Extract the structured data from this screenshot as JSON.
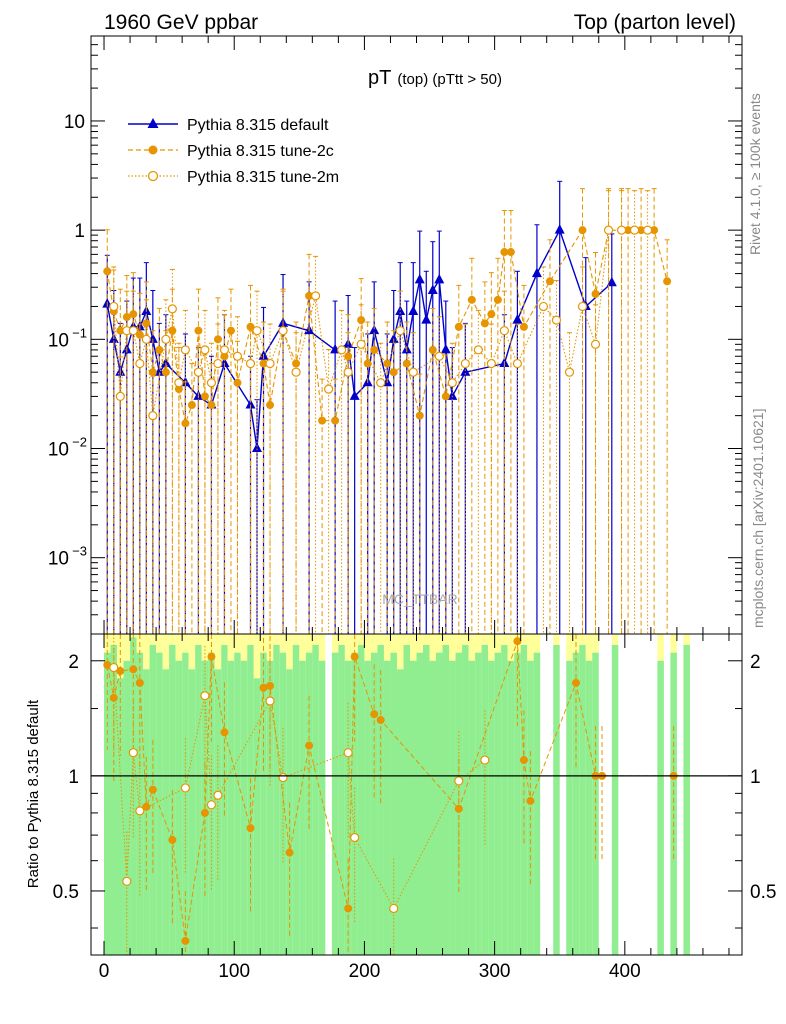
{
  "header": {
    "left": "1960 GeV ppbar",
    "right": "Top (parton level)"
  },
  "side_labels": {
    "rivet": "Rivet 4.1.0, ≥ 100k events",
    "mcplots": "mcplots.cern.ch [arXiv:2401.10621]"
  },
  "watermark": "MC_TTBAR",
  "colors": {
    "default": "#0000cc",
    "tune": "#e69500",
    "band_green": "#90ee90",
    "band_yellow": "#ffff99"
  },
  "chart_data": [
    {
      "panel": "main",
      "type": "line",
      "title_main": "pT",
      "title_sub": "(top) (pTtt > 50)",
      "y_scale": "log",
      "xlim": [
        -10,
        490
      ],
      "ylim": [
        0.0002,
        60
      ],
      "y_ticks": [
        {
          "value": 10,
          "label": "10"
        },
        {
          "value": 1,
          "label": "1"
        },
        {
          "value": 0.1,
          "label": "10",
          "exp": "-1"
        },
        {
          "value": 0.01,
          "label": "10",
          "exp": "-2"
        },
        {
          "value": 0.001,
          "label": "10",
          "exp": "-3"
        }
      ],
      "legend_position": "top-left",
      "series": [
        {
          "name": "Pythia 8.315 default",
          "style": "solid-triangle",
          "x": [
            2.5,
            7.5,
            12.5,
            17.5,
            22.5,
            27.5,
            32.5,
            37.5,
            42.5,
            47.5,
            62.5,
            72.5,
            82.5,
            92.5,
            112.5,
            117.5,
            122.5,
            137.5,
            157.5,
            177.5,
            187.5,
            192.5,
            202.5,
            207.5,
            217.5,
            222.5,
            227.5,
            232.5,
            237.5,
            242.5,
            247.5,
            252.5,
            257.5,
            262.5,
            267.5,
            277.5,
            307.5,
            317.5,
            332.5,
            350,
            370,
            390
          ],
          "y": [
            0.21,
            0.1,
            0.05,
            0.08,
            0.13,
            0.13,
            0.18,
            0.1,
            0.05,
            0.06,
            0.04,
            0.03,
            0.025,
            0.06,
            0.025,
            0.01,
            0.07,
            0.14,
            0.12,
            0.08,
            0.09,
            0.03,
            0.04,
            0.12,
            0.04,
            0.1,
            0.18,
            0.08,
            0.18,
            0.35,
            0.15,
            0.28,
            0.35,
            0.08,
            0.03,
            0.05,
            0.06,
            0.15,
            0.4,
            1.0,
            0.2,
            0.33
          ]
        },
        {
          "name": "Pythia 8.315 tune-2c",
          "style": "dashed-filled-circle",
          "x": [
            2.5,
            7.5,
            12.5,
            17.5,
            22.5,
            27.5,
            32.5,
            37.5,
            42.5,
            47.5,
            52.5,
            57.5,
            62.5,
            67.5,
            72.5,
            77.5,
            82.5,
            87.5,
            92.5,
            97.5,
            102.5,
            112.5,
            122.5,
            127.5,
            137.5,
            147.5,
            157.5,
            167.5,
            177.5,
            187.5,
            197.5,
            202.5,
            207.5,
            217.5,
            222.5,
            232.5,
            242.5,
            252.5,
            262.5,
            272.5,
            282.5,
            292.5,
            297.5,
            302.5,
            307.5,
            312.5,
            322.5,
            342.5,
            367.5,
            377.5,
            387.5,
            397.5,
            402.5,
            412.5,
            422.5,
            432.5
          ],
          "y": [
            0.42,
            0.18,
            0.12,
            0.16,
            0.17,
            0.11,
            0.14,
            0.05,
            0.08,
            0.05,
            0.12,
            0.035,
            0.017,
            0.025,
            0.12,
            0.03,
            0.025,
            0.1,
            0.07,
            0.12,
            0.04,
            0.13,
            0.06,
            0.025,
            0.12,
            0.06,
            0.25,
            0.018,
            0.018,
            0.07,
            0.15,
            0.06,
            0.08,
            0.06,
            0.05,
            0.06,
            0.02,
            0.08,
            0.03,
            0.13,
            0.23,
            0.14,
            0.17,
            0.23,
            0.63,
            0.63,
            0.13,
            0.34,
            1.0,
            0.26,
            1.0,
            1.0,
            1.0,
            1.0,
            1.0,
            0.34
          ]
        },
        {
          "name": "Pythia 8.315 tune-2m",
          "style": "dotted-open-circle",
          "x": [
            7.5,
            12.5,
            17.5,
            22.5,
            27.5,
            32.5,
            37.5,
            47.5,
            52.5,
            57.5,
            62.5,
            72.5,
            77.5,
            82.5,
            87.5,
            92.5,
            102.5,
            112.5,
            117.5,
            127.5,
            137.5,
            147.5,
            162.5,
            172.5,
            182.5,
            187.5,
            197.5,
            212.5,
            227.5,
            237.5,
            257.5,
            267.5,
            277.5,
            287.5,
            297.5,
            307.5,
            317.5,
            337.5,
            347.5,
            357.5,
            367.5,
            377.5,
            387.5,
            397.5,
            407.5,
            417.5
          ],
          "y": [
            0.2,
            0.03,
            0.12,
            0.12,
            0.06,
            0.1,
            0.02,
            0.1,
            0.19,
            0.04,
            0.08,
            0.05,
            0.08,
            0.04,
            0.06,
            0.08,
            0.07,
            0.06,
            0.12,
            0.06,
            0.12,
            0.05,
            0.25,
            0.035,
            0.08,
            0.05,
            0.09,
            0.04,
            0.12,
            0.05,
            0.07,
            0.04,
            0.06,
            0.08,
            0.06,
            0.12,
            0.06,
            0.2,
            0.15,
            0.05,
            0.2,
            0.09,
            1.0,
            1.0,
            1.0,
            1.0
          ]
        }
      ]
    },
    {
      "panel": "ratio",
      "type": "line",
      "ylabel": "Ratio to Pythia 8.315 default",
      "xlim": [
        -10,
        490
      ],
      "ylim": [
        0.34,
        2.35
      ],
      "y_ticks": [
        {
          "value": 2,
          "label": "2"
        },
        {
          "value": 1,
          "label": "1"
        },
        {
          "value": 0.5,
          "label": "0.5"
        }
      ],
      "x_ticks": [
        {
          "value": 0,
          "label": "0"
        },
        {
          "value": 100,
          "label": "100"
        },
        {
          "value": 200,
          "label": "200"
        },
        {
          "value": 300,
          "label": "300"
        },
        {
          "value": 400,
          "label": "400"
        }
      ],
      "band_bins_x": [
        2.5,
        7.5,
        12.5,
        17.5,
        22.5,
        27.5,
        32.5,
        37.5,
        42.5,
        47.5,
        52.5,
        57.5,
        62.5,
        67.5,
        72.5,
        77.5,
        82.5,
        87.5,
        92.5,
        97.5,
        102.5,
        107.5,
        112.5,
        117.5,
        122.5,
        127.5,
        132.5,
        137.5,
        142.5,
        147.5,
        152.5,
        157.5,
        162.5,
        167.5,
        177.5,
        182.5,
        187.5,
        192.5,
        197.5,
        202.5,
        207.5,
        212.5,
        217.5,
        222.5,
        227.5,
        232.5,
        237.5,
        242.5,
        247.5,
        252.5,
        257.5,
        262.5,
        267.5,
        272.5,
        277.5,
        282.5,
        287.5,
        292.5,
        297.5,
        302.5,
        307.5,
        312.5,
        317.5,
        322.5,
        327.5,
        332.5,
        347.5,
        357.5,
        362.5,
        367.5,
        372.5,
        377.5,
        392.5,
        427.5,
        437.5,
        447.5
      ],
      "band_green_hi": [
        2.1,
        2.2,
        1.8,
        2.0,
        2.3,
        2.1,
        1.9,
        2.2,
        2.1,
        1.9,
        2.2,
        2.0,
        2.1,
        1.9,
        2.2,
        2.0,
        2.1,
        1.9,
        2.2,
        2.0,
        2.1,
        2.0,
        2.2,
        1.8,
        2.1,
        2.0,
        2.2,
        2.1,
        1.9,
        2.2,
        2.0,
        2.1,
        2.2,
        2.0,
        2.1,
        2.2,
        2.0,
        2.1,
        2.2,
        2.0,
        2.1,
        2.2,
        2.0,
        2.1,
        1.9,
        2.2,
        2.0,
        2.1,
        2.2,
        2.0,
        2.1,
        2.2,
        2.0,
        2.1,
        2.2,
        2.0,
        2.1,
        2.2,
        2.0,
        2.1,
        2.2,
        2.0,
        2.1,
        2.2,
        2.0,
        2.1,
        2.2,
        2.0,
        2.1,
        2.2,
        2.0,
        2.1,
        2.2,
        2.0,
        2.1,
        2.2
      ],
      "band_green_lo": [
        0.34,
        0.34,
        0.34,
        0.34,
        0.34,
        0.34,
        0.34,
        0.34,
        0.34,
        0.34,
        0.34,
        0.34,
        0.34,
        0.34,
        0.34,
        0.34,
        0.34,
        0.34,
        0.34,
        0.34,
        0.34,
        0.34,
        0.34,
        0.34,
        0.34,
        0.34,
        0.34,
        0.34,
        0.34,
        0.34,
        0.34,
        0.34,
        0.34,
        0.34,
        0.34,
        0.34,
        0.34,
        0.34,
        0.34,
        0.34,
        0.34,
        0.34,
        0.34,
        0.34,
        0.34,
        0.34,
        0.34,
        0.34,
        0.34,
        0.34,
        0.34,
        0.34,
        0.34,
        0.34,
        0.34,
        0.34,
        0.34,
        0.34,
        0.34,
        0.34,
        0.34,
        0.34,
        0.34,
        0.34,
        0.34,
        0.34,
        0.34,
        0.34,
        0.34,
        0.34,
        0.34,
        0.34,
        0.34,
        0.34,
        0.34,
        0.34
      ],
      "series": [
        {
          "name": "Pythia 8.315 tune-2c",
          "x": [
            2.5,
            7.5,
            12.5,
            22.5,
            27.5,
            32.5,
            37.5,
            52.5,
            62.5,
            77.5,
            82.5,
            92.5,
            112.5,
            122.5,
            127.5,
            142.5,
            157.5,
            187.5,
            192.5,
            207.5,
            212.5,
            272.5,
            317.5,
            322.5,
            327.5,
            362.5,
            377.5,
            382.5,
            437.5
          ],
          "y": [
            1.95,
            1.6,
            1.88,
            1.9,
            1.75,
            0.83,
            0.92,
            0.68,
            0.37,
            0.8,
            2.05,
            1.3,
            0.73,
            1.7,
            1.72,
            0.63,
            1.2,
            0.45,
            2.05,
            1.45,
            1.4,
            0.82,
            2.25,
            1.1,
            0.86,
            1.75,
            1.0,
            1.0,
            1.0
          ]
        },
        {
          "name": "Pythia 8.315 tune-2m",
          "x": [
            7.5,
            17.5,
            22.5,
            27.5,
            62.5,
            77.5,
            82.5,
            87.5,
            127.5,
            137.5,
            187.5,
            192.5,
            222.5,
            272.5,
            292.5
          ],
          "y": [
            1.92,
            0.53,
            1.15,
            0.81,
            0.93,
            1.62,
            0.84,
            0.89,
            1.57,
            0.99,
            1.15,
            0.69,
            0.45,
            0.97,
            1.1
          ]
        }
      ]
    }
  ]
}
